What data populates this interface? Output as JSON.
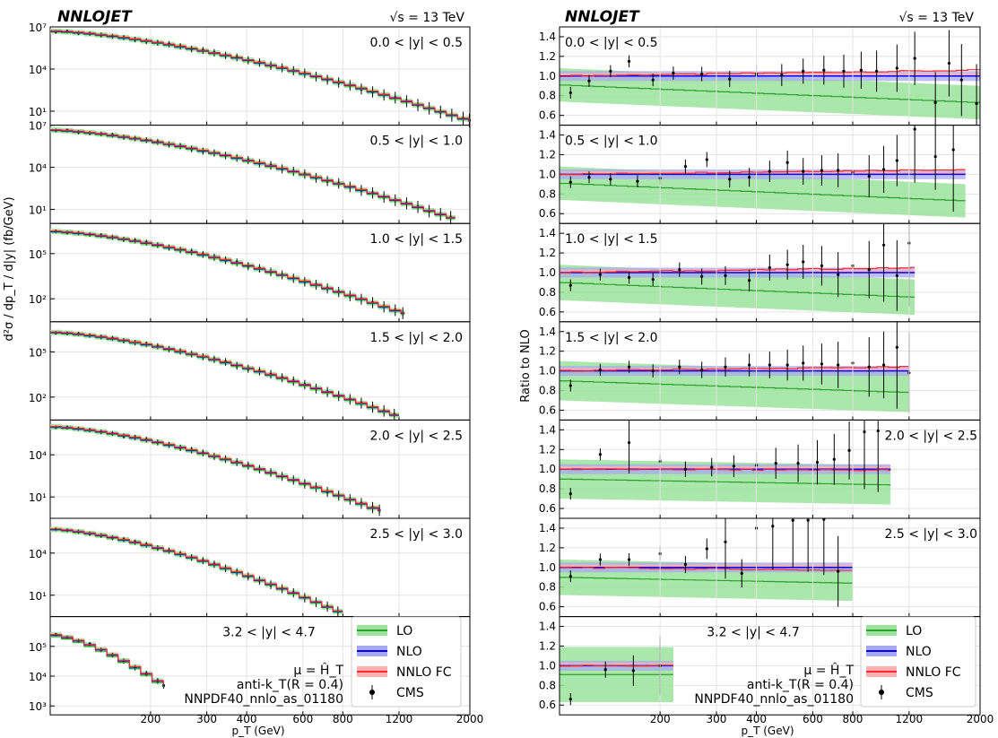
{
  "figure": {
    "left_title": "NNLOJET",
    "right_title": "NNLOJET",
    "left_energy": "√s = 13 TeV",
    "right_energy": "√s = 13 TeV",
    "left_ylabel": "d²σ / dp_T / d|y| (fb/GeV)",
    "right_ylabel": "Ratio to NLO",
    "xlabel": "p_T (GeV)",
    "x_tick_labels": [
      "200",
      "300",
      "400",
      "600",
      "800",
      "1200",
      "2000"
    ],
    "x_tick_values": [
      200,
      300,
      400,
      600,
      800,
      1200,
      2000
    ],
    "ratio_tick_labels": [
      "0.6",
      "0.8",
      "1.0",
      "1.2",
      "1.4"
    ],
    "ratio_tick_values": [
      0.6,
      0.8,
      1.0,
      1.2,
      1.4
    ],
    "annotations": [
      "μ = Ĥ_T",
      "anti-k_T(R = 0.4)",
      "NNPDF40_nnlo_as_01180"
    ],
    "legend": [
      "LO",
      "NLO",
      "NNLO FC",
      "CMS"
    ],
    "colors": {
      "LO": "#2ca02c",
      "LO_band": "#9be39b",
      "NLO": "#0000ff",
      "NLO_band": "#a8a8f0",
      "NNLO": "#ff2a2a",
      "NNLO_band": "#ffb0b0",
      "CMS": "#000000"
    }
  },
  "chart_data": [
    {
      "type": "line",
      "panel": "left",
      "title": "",
      "xlabel": "p_T (GeV)",
      "ylabel": "d²σ / dp_T / d|y| (fb/GeV)",
      "xlim": [
        97,
        2000
      ],
      "log_x": true,
      "log_y": true,
      "grid": true,
      "series_names": [
        "LO",
        "NLO",
        "NNLO FC",
        "CMS"
      ],
      "rapidity_bins": [
        {
          "label": "0.0 < |y| < 0.5",
          "ylim": [
            1,
            10000000
          ],
          "yticks": [
            10.0,
            10000.0,
            10000000.0
          ],
          "ytick_labels": [
            "10¹",
            "10⁴",
            "10⁷"
          ],
          "pt_max": 2000,
          "value_start": 5000000,
          "value_end": 2
        },
        {
          "label": "0.5 < |y| < 1.0",
          "ylim": [
            1,
            10000000
          ],
          "yticks": [
            10.0,
            10000.0,
            10000000.0
          ],
          "ytick_labels": [
            "10¹",
            "10⁴",
            "10⁷"
          ],
          "pt_max": 1800,
          "value_start": 4500000,
          "value_end": 2
        },
        {
          "label": "1.0 < |y| < 1.5",
          "ylim": [
            3,
            10000000
          ],
          "yticks": [
            100.0,
            100000.0
          ],
          "ytick_labels": [
            "10²",
            "10⁵"
          ],
          "pt_max": 1250,
          "value_start": 3000000,
          "value_end": 10
        },
        {
          "label": "1.5 < |y| < 2.0",
          "ylim": [
            3,
            10000000
          ],
          "yticks": [
            100.0,
            100000.0
          ],
          "ytick_labels": [
            "10²",
            "10⁵"
          ],
          "pt_max": 1200,
          "value_start": 2000000,
          "value_end": 5
        },
        {
          "label": "2.0 < |y| < 2.5",
          "ylim": [
            0.3,
            3000000
          ],
          "yticks": [
            10.0,
            10000.0
          ],
          "ytick_labels": [
            "10¹",
            "10⁴"
          ],
          "pt_max": 1050,
          "value_start": 1000000,
          "value_end": 1
        },
        {
          "label": "2.5 < |y| < 3.0",
          "ylim": [
            0.3,
            3000000
          ],
          "yticks": [
            10.0,
            10000.0
          ],
          "ytick_labels": [
            "10¹",
            "10⁴"
          ],
          "pt_max": 800,
          "value_start": 500000,
          "value_end": 0.5
        },
        {
          "label": "3.2 < |y| < 4.7",
          "ylim": [
            500,
            1000000
          ],
          "yticks": [
            1000.0,
            10000.0,
            100000.0
          ],
          "ytick_labels": [
            "10³",
            "10⁴",
            "10⁵"
          ],
          "pt_max": 220,
          "value_start": 250000,
          "value_end": 5000
        }
      ]
    },
    {
      "type": "line",
      "panel": "right",
      "title": "",
      "xlabel": "p_T (GeV)",
      "ylabel": "Ratio to NLO",
      "xlim": [
        97,
        2000
      ],
      "log_x": true,
      "ylim": [
        0.5,
        1.5
      ],
      "grid": true,
      "series_names": [
        "LO",
        "NLO",
        "NNLO FC",
        "CMS"
      ],
      "rapidity_bins": [
        {
          "label": "0.0 < |y| < 0.5",
          "pt_max": 2000,
          "lo_start": 0.91,
          "lo_end": 0.73,
          "lo_band": 0.17,
          "nnlo_end": 1.06,
          "cms": [
            [
              105,
              0.83
            ],
            [
              120,
              0.95
            ],
            [
              140,
              1.05
            ],
            [
              160,
              1.15
            ],
            [
              190,
              0.96
            ],
            [
              220,
              1.03
            ],
            [
              270,
              1.02
            ],
            [
              330,
              0.97
            ],
            [
              400,
              1.02
            ],
            [
              480,
              1.01
            ],
            [
              560,
              1.05
            ],
            [
              650,
              1.06
            ],
            [
              750,
              1.05
            ],
            [
              850,
              1.06
            ],
            [
              950,
              1.05
            ],
            [
              1100,
              1.08
            ],
            [
              1250,
              1.18
            ],
            [
              1450,
              0.73
            ],
            [
              1600,
              1.13
            ],
            [
              1750,
              0.96
            ],
            [
              1950,
              0.72
            ]
          ]
        },
        {
          "label": "0.5 < |y| < 1.0",
          "pt_max": 1800,
          "lo_start": 0.91,
          "lo_end": 0.73,
          "lo_band": 0.17,
          "nnlo_end": 1.05,
          "cms": [
            [
              105,
              0.92
            ],
            [
              120,
              0.97
            ],
            [
              140,
              0.95
            ],
            [
              170,
              0.93
            ],
            [
              200,
              0.96
            ],
            [
              240,
              1.08
            ],
            [
              280,
              1.15
            ],
            [
              330,
              0.95
            ],
            [
              380,
              0.97
            ],
            [
              440,
              1.03
            ],
            [
              500,
              1.12
            ],
            [
              560,
              1.03
            ],
            [
              640,
              1.04
            ],
            [
              720,
              1.04
            ],
            [
              800,
              1.02
            ],
            [
              900,
              0.98
            ],
            [
              1000,
              1.05
            ],
            [
              1100,
              1.14
            ],
            [
              1250,
              1.46
            ],
            [
              1450,
              1.18
            ],
            [
              1650,
              1.25
            ]
          ]
        },
        {
          "label": "1.0 < |y| < 1.5",
          "pt_max": 1250,
          "lo_start": 0.9,
          "lo_end": 0.75,
          "lo_band": 0.18,
          "nnlo_end": 1.05,
          "cms": [
            [
              105,
              0.87
            ],
            [
              130,
              0.98
            ],
            [
              160,
              0.95
            ],
            [
              190,
              0.93
            ],
            [
              230,
              1.03
            ],
            [
              270,
              0.96
            ],
            [
              320,
              0.97
            ],
            [
              380,
              0.92
            ],
            [
              440,
              1.05
            ],
            [
              500,
              1.08
            ],
            [
              560,
              1.11
            ],
            [
              640,
              1.07
            ],
            [
              720,
              0.98
            ],
            [
              800,
              1.07
            ],
            [
              900,
              1.03
            ],
            [
              1000,
              1.28
            ],
            [
              1100,
              0.97
            ],
            [
              1200,
              1.3
            ]
          ]
        },
        {
          "label": "1.5 < |y| < 2.0",
          "pt_max": 1200,
          "lo_start": 0.9,
          "lo_end": 0.78,
          "lo_band": 0.2,
          "nnlo_end": 1.04,
          "cms": [
            [
              105,
              0.85
            ],
            [
              130,
              1.01
            ],
            [
              160,
              1.04
            ],
            [
              190,
              1.0
            ],
            [
              230,
              1.04
            ],
            [
              270,
              1.01
            ],
            [
              320,
              1.04
            ],
            [
              380,
              1.06
            ],
            [
              440,
              1.06
            ],
            [
              500,
              1.06
            ],
            [
              560,
              1.08
            ],
            [
              640,
              1.07
            ],
            [
              720,
              1.06
            ],
            [
              800,
              1.08
            ],
            [
              900,
              1.04
            ],
            [
              1000,
              1.06
            ],
            [
              1100,
              1.24
            ],
            [
              1200,
              0.98
            ]
          ]
        },
        {
          "label": "2.0 < |y| < 2.5",
          "pt_max": 1050,
          "lo_start": 0.9,
          "lo_end": 0.84,
          "lo_band": 0.2,
          "nnlo_end": 0.99,
          "cms": [
            [
              105,
              0.75
            ],
            [
              130,
              1.15
            ],
            [
              160,
              1.27
            ],
            [
              200,
              1.08
            ],
            [
              240,
              1.0
            ],
            [
              290,
              1.02
            ],
            [
              340,
              1.03
            ],
            [
              400,
              1.04
            ],
            [
              460,
              1.06
            ],
            [
              540,
              1.06
            ],
            [
              620,
              1.07
            ],
            [
              700,
              1.1
            ],
            [
              780,
              1.19
            ],
            [
              870,
              1.38
            ],
            [
              960,
              1.39
            ]
          ]
        },
        {
          "label": "2.5 < |y| < 3.0",
          "pt_max": 800,
          "lo_start": 0.9,
          "lo_end": 0.84,
          "lo_band": 0.18,
          "nnlo_end": 0.97,
          "cms": [
            [
              105,
              0.91
            ],
            [
              130,
              1.08
            ],
            [
              160,
              1.08
            ],
            [
              200,
              1.14
            ],
            [
              240,
              1.03
            ],
            [
              280,
              1.19
            ],
            [
              320,
              1.26
            ],
            [
              360,
              0.94
            ],
            [
              400,
              1.4
            ],
            [
              450,
              1.42
            ],
            [
              520,
              1.48
            ],
            [
              580,
              1.48
            ],
            [
              650,
              1.49
            ],
            [
              720,
              0.96
            ]
          ]
        },
        {
          "label": "3.2 < |y| < 4.7",
          "pt_max": 220,
          "lo_start": 0.91,
          "lo_end": 0.91,
          "lo_band": 0.28,
          "nnlo_end": 1.0,
          "cms": [
            [
              105,
              0.66
            ],
            [
              135,
              0.96
            ],
            [
              165,
              0.95
            ],
            [
              200,
              1.0
            ]
          ]
        }
      ]
    }
  ]
}
